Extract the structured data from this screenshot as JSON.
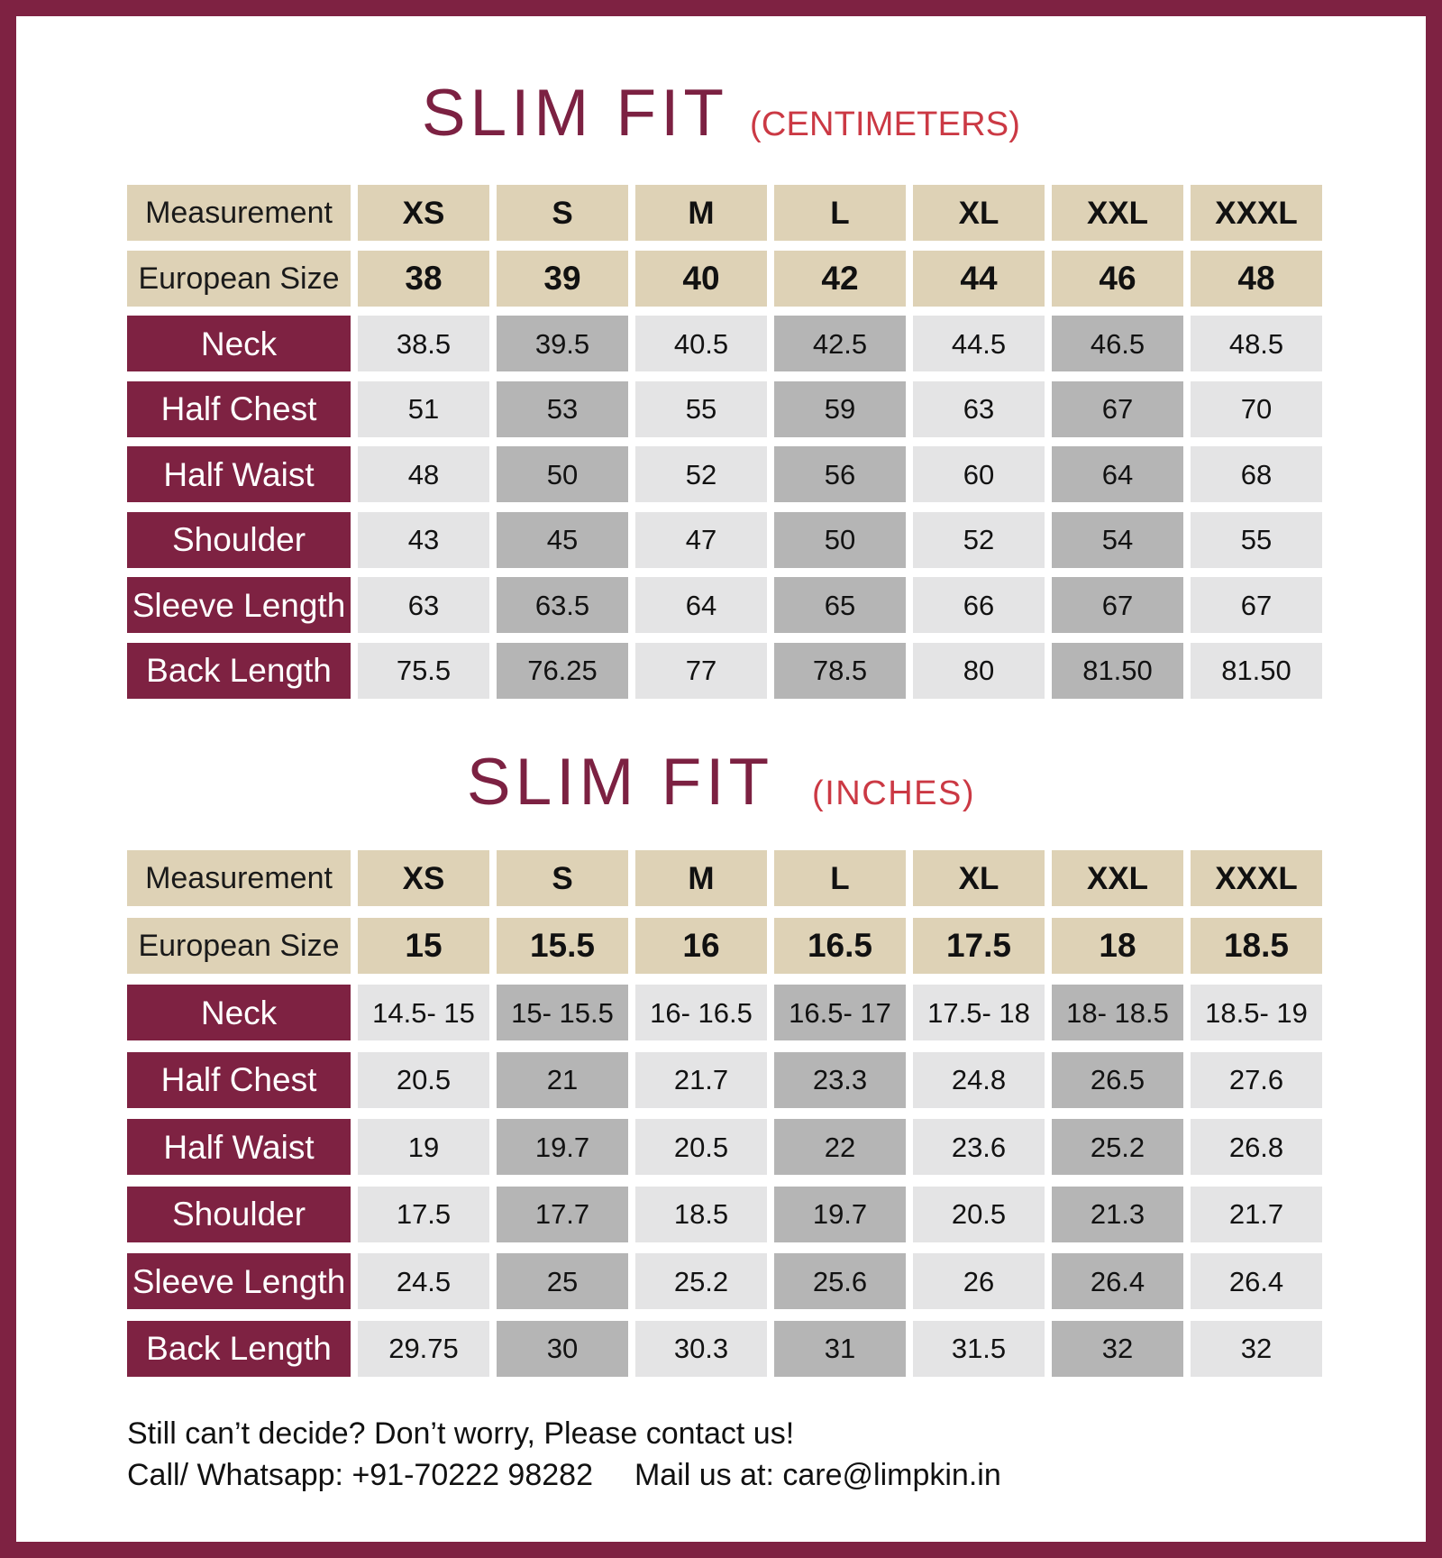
{
  "colors": {
    "maroon": "#7e2242",
    "red": "#cb3944",
    "tan": "#ded2b6",
    "gray_light": "#e4e4e5",
    "gray_dark": "#b5b5b5"
  },
  "tables": [
    {
      "title": "SLIM FIT",
      "subtitle": "(CENTIMETERS)",
      "header_label": "Measurement",
      "sizes": [
        "XS",
        "S",
        "M",
        "L",
        "XL",
        "XXL",
        "XXXL"
      ],
      "euro_label": "European Size",
      "euro_sizes": [
        "38",
        "39",
        "40",
        "42",
        "44",
        "46",
        "48"
      ],
      "rows": [
        {
          "label": "Neck",
          "values": [
            "38.5",
            "39.5",
            "40.5",
            "42.5",
            "44.5",
            "46.5",
            "48.5"
          ]
        },
        {
          "label": "Half Chest",
          "values": [
            "51",
            "53",
            "55",
            "59",
            "63",
            "67",
            "70"
          ]
        },
        {
          "label": "Half Waist",
          "values": [
            "48",
            "50",
            "52",
            "56",
            "60",
            "64",
            "68"
          ]
        },
        {
          "label": "Shoulder",
          "values": [
            "43",
            "45",
            "47",
            "50",
            "52",
            "54",
            "55"
          ]
        },
        {
          "label": "Sleeve Length",
          "values": [
            "63",
            "63.5",
            "64",
            "65",
            "66",
            "67",
            "67"
          ]
        },
        {
          "label": "Back Length",
          "values": [
            "75.5",
            "76.25",
            "77",
            "78.5",
            "80",
            "81.50",
            "81.50"
          ]
        }
      ]
    },
    {
      "title": "SLIM FIT",
      "subtitle": "(INCHES)",
      "header_label": "Measurement",
      "sizes": [
        "XS",
        "S",
        "M",
        "L",
        "XL",
        "XXL",
        "XXXL"
      ],
      "euro_label": "European Size",
      "euro_sizes": [
        "15",
        "15.5",
        "16",
        "16.5",
        "17.5",
        "18",
        "18.5"
      ],
      "rows": [
        {
          "label": "Neck",
          "values": [
            "14.5- 15",
            "15- 15.5",
            "16- 16.5",
            "16.5- 17",
            "17.5- 18",
            "18- 18.5",
            "18.5- 19"
          ]
        },
        {
          "label": "Half Chest",
          "values": [
            "20.5",
            "21",
            "21.7",
            "23.3",
            "24.8",
            "26.5",
            "27.6"
          ]
        },
        {
          "label": "Half Waist",
          "values": [
            "19",
            "19.7",
            "20.5",
            "22",
            "23.6",
            "25.2",
            "26.8"
          ]
        },
        {
          "label": "Shoulder",
          "values": [
            "17.5",
            "17.7",
            "18.5",
            "19.7",
            "20.5",
            "21.3",
            "21.7"
          ]
        },
        {
          "label": "Sleeve Length",
          "values": [
            "24.5",
            "25",
            "25.2",
            "25.6",
            "26",
            "26.4",
            "26.4"
          ]
        },
        {
          "label": "Back Length",
          "values": [
            "29.75",
            "30",
            "30.3",
            "31",
            "31.5",
            "32",
            "32"
          ]
        }
      ]
    }
  ],
  "footer": {
    "line1": "Still can’t decide? Don’t worry, Please contact us!",
    "line2_left": "Call/ Whatsapp: +91-70222 98282",
    "line2_right": "Mail us at: care@limpkin.in"
  }
}
